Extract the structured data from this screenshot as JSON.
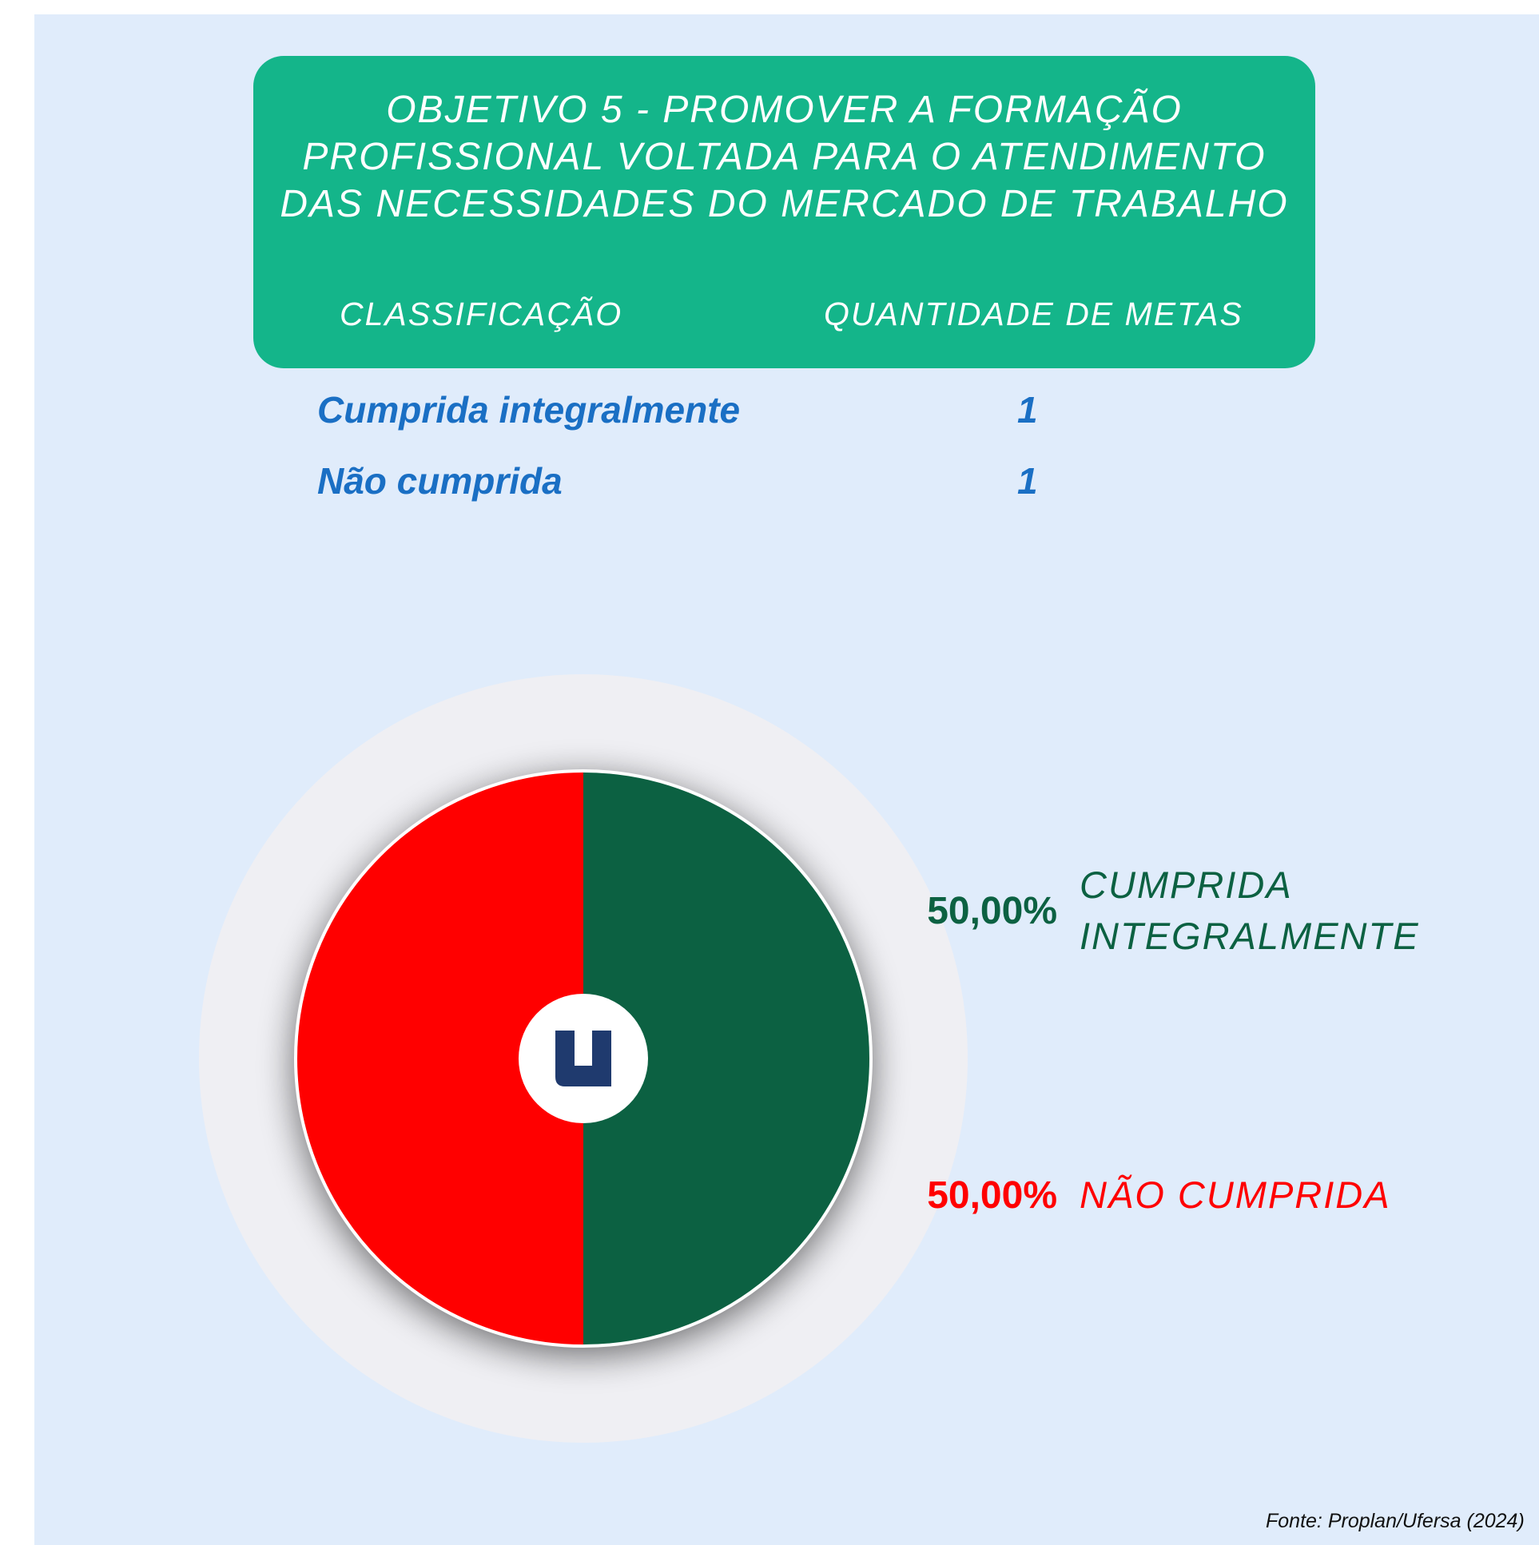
{
  "header": {
    "title": [
      "OBJETIVO 5  - PROMOVER A FORMAÇÃO",
      "PROFISSIONAL VOLTADA PARA O ATENDIMENTO",
      "DAS NECESSIDADES DO MERCADO DE TRABALHO"
    ]
  },
  "table": {
    "columns": [
      "CLASSIFICAÇÃO",
      "QUANTIDADE DE METAS"
    ],
    "rows": [
      [
        "Cumprida integralmente",
        1
      ],
      [
        "Não cumprida",
        1
      ]
    ]
  },
  "chart_data": {
    "type": "pie",
    "categories": [
      "CUMPRIDA INTEGRALMENTE",
      "NÃO CUMPRIDA"
    ],
    "values": [
      50,
      50
    ],
    "value_labels": [
      "50,00%",
      "50,00%"
    ],
    "colors": [
      "#0c6142",
      "#ff0000"
    ]
  },
  "source": "Fonte: Proplan/Ufersa (2024)"
}
